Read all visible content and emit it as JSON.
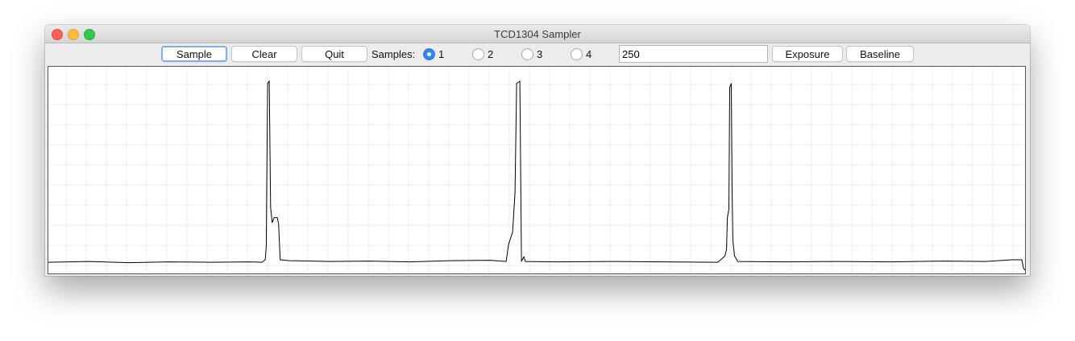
{
  "window": {
    "title": "TCD1304 Sampler",
    "traffic_lights": {
      "close": "#fc605b",
      "minimize": "#fdbc40",
      "zoom": "#34c84a"
    }
  },
  "toolbar": {
    "sample_label": "Sample",
    "clear_label": "Clear",
    "quit_label": "Quit",
    "samples_label": "Samples:",
    "sample_options": [
      "1",
      "2",
      "3",
      "4"
    ],
    "selected_sample": "1",
    "exposure_value": "250",
    "exposure_label": "Exposure",
    "baseline_label": "Baseline",
    "accent": "#2f86f6"
  },
  "chart_data": {
    "type": "line",
    "title": "",
    "xlabel": "",
    "ylabel": "",
    "xlim": [
      0,
      3648
    ],
    "ylim": [
      0,
      100
    ],
    "grid": true,
    "line_color": "#000000",
    "points": [
      [
        0,
        5.4
      ],
      [
        150,
        5.8
      ],
      [
        300,
        5.2
      ],
      [
        450,
        5.6
      ],
      [
        600,
        5.4
      ],
      [
        750,
        5.6
      ],
      [
        798,
        5.4
      ],
      [
        810,
        6.6
      ],
      [
        814,
        13
      ],
      [
        819,
        92
      ],
      [
        825,
        93
      ],
      [
        830,
        32
      ],
      [
        836,
        24.5
      ],
      [
        843,
        27
      ],
      [
        855,
        27
      ],
      [
        860,
        24
      ],
      [
        866,
        6.6
      ],
      [
        900,
        6.2
      ],
      [
        1050,
        5.8
      ],
      [
        1200,
        6
      ],
      [
        1350,
        5.6
      ],
      [
        1500,
        6.2
      ],
      [
        1650,
        6.4
      ],
      [
        1710,
        5.8
      ],
      [
        1719,
        14
      ],
      [
        1734,
        20
      ],
      [
        1743,
        39
      ],
      [
        1749,
        92
      ],
      [
        1761,
        93
      ],
      [
        1767,
        6
      ],
      [
        1776,
        8
      ],
      [
        1782,
        5.8
      ],
      [
        1900,
        5.6
      ],
      [
        2100,
        5.8
      ],
      [
        2300,
        5.6
      ],
      [
        2500,
        5.4
      ],
      [
        2515,
        7
      ],
      [
        2527,
        8.5
      ],
      [
        2533,
        11.7
      ],
      [
        2536,
        27
      ],
      [
        2542,
        31
      ],
      [
        2545,
        90
      ],
      [
        2548,
        91
      ],
      [
        2551,
        92
      ],
      [
        2554,
        39
      ],
      [
        2557,
        15.6
      ],
      [
        2563,
        8.5
      ],
      [
        2575,
        5.8
      ],
      [
        2750,
        5.6
      ],
      [
        2950,
        5.8
      ],
      [
        3150,
        5.6
      ],
      [
        3350,
        6
      ],
      [
        3500,
        5.8
      ],
      [
        3600,
        6.6
      ],
      [
        3636,
        6.6
      ],
      [
        3642,
        2.7
      ],
      [
        3648,
        1.5
      ]
    ]
  }
}
